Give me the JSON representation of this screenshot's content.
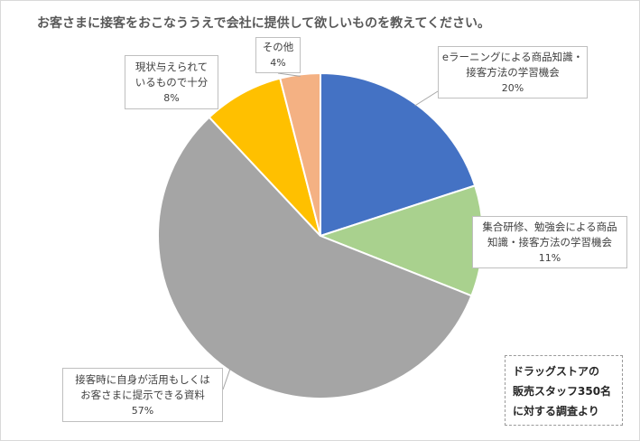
{
  "chart_data": {
    "type": "pie",
    "title": "お客さまに接客をおこなううえで会社に提供して欲しいものを教えてください。",
    "slices": [
      {
        "label_lines": [
          "eラーニングによる商品知識・",
          "接客方法の学習機会"
        ],
        "percent_label": "20%",
        "value": 20,
        "color": "#4472c4"
      },
      {
        "label_lines": [
          "集合研修、勉強会による商品",
          "知識・接客方法の学習機会"
        ],
        "percent_label": "11%",
        "value": 11,
        "color": "#a9d18e"
      },
      {
        "label_lines": [
          "接客時に自身が活用もしくは",
          "お客さまに提示できる資料"
        ],
        "percent_label": "57%",
        "value": 57,
        "color": "#a5a5a5"
      },
      {
        "label_lines": [
          "現状与えられて",
          "いるもので十分"
        ],
        "percent_label": "8%",
        "value": 8,
        "color": "#ffc000"
      },
      {
        "label_lines": [
          "その他"
        ],
        "percent_label": "4%",
        "value": 4,
        "color": "#f4b183"
      }
    ],
    "start_angle_deg": 0,
    "direction": "clockwise",
    "legend": "none",
    "labels": "callouts"
  },
  "note": {
    "lines": [
      "ドラッグストアの",
      "販売スタッフ350名",
      "に対する調査より"
    ]
  }
}
